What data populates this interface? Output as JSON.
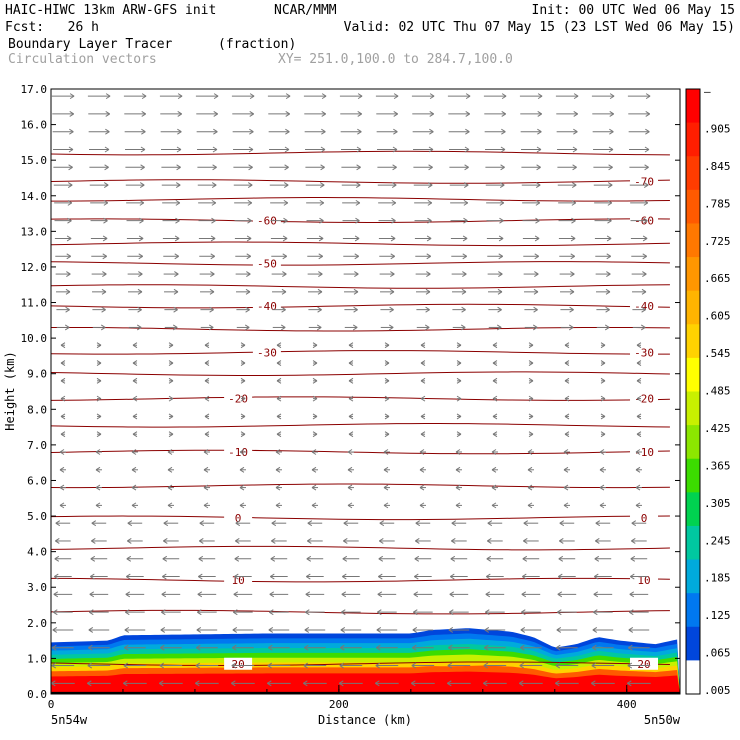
{
  "header": {
    "model": "HAIC-HIWC 13km ARW-GFS init",
    "org": "NCAR/MMM",
    "init": "Init: 00 UTC Wed 06 May 15",
    "fcst": "Fcst:   26 h",
    "valid": "Valid: 02 UTC Thu 07 May 15 (23 LST Wed 06 May 15)",
    "field1": "Boundary Layer Tracer",
    "field1_units": "(fraction)",
    "field2": "Circulation vectors",
    "xy": "XY= 251.0,100.0 to 284.7,100.0"
  },
  "chart_data": {
    "type": "heatmap",
    "xlabel": "Distance (km)",
    "ylabel": "Height (km)",
    "xlim": [
      0,
      437
    ],
    "ylim": [
      0,
      17
    ],
    "x_ticks": [
      "0",
      "200",
      "400"
    ],
    "x_tick_values": [
      0,
      200,
      400
    ],
    "x_end_labels": [
      "5n54w",
      "5n50w"
    ],
    "y_ticks": [
      "0.0",
      "1.0",
      "2.0",
      "3.0",
      "4.0",
      "5.0",
      "6.0",
      "7.0",
      "8.0",
      "9.0",
      "10.0",
      "11.0",
      "12.0",
      "13.0",
      "14.0",
      "15.0",
      "16.0",
      "17.0"
    ],
    "colorbar_labels": [
      "–",
      ".905",
      ".845",
      ".785",
      ".725",
      ".665",
      ".605",
      ".545",
      ".485",
      ".425",
      ".365",
      ".305",
      ".245",
      ".185",
      ".125",
      ".065",
      ".005"
    ],
    "colorbar_colors": [
      "#ff0000",
      "#ff1e00",
      "#ff3c00",
      "#ff5a00",
      "#ff7800",
      "#ff9600",
      "#ffb400",
      "#ffd200",
      "#ffff00",
      "#c8f000",
      "#8ce600",
      "#3cdc00",
      "#00d250",
      "#00c8a0",
      "#00aadc",
      "#0078f0",
      "#0046dc",
      "#ffffff"
    ],
    "isotherm_color": "#8b0000",
    "isotherms": [
      {
        "label": "-70",
        "y": 14.4,
        "label_positions": [
          412
        ]
      },
      {
        "label": "-60",
        "y": 13.3,
        "label_positions": [
          150,
          412
        ]
      },
      {
        "label": "-50",
        "y": 12.1,
        "label_positions": [
          150
        ]
      },
      {
        "label": "-40",
        "y": 10.9,
        "label_positions": [
          150,
          412
        ]
      },
      {
        "label": "-30",
        "y": 9.6,
        "label_positions": [
          150,
          412
        ]
      },
      {
        "label": "-20",
        "y": 8.3,
        "label_positions": [
          130,
          412
        ]
      },
      {
        "label": "-10",
        "y": 6.8,
        "label_positions": [
          130,
          412
        ]
      },
      {
        "label": "0",
        "y": 4.95,
        "label_positions": [
          130,
          412
        ]
      },
      {
        "label": "10",
        "y": 3.2,
        "label_positions": [
          130,
          412
        ]
      },
      {
        "label": "20",
        "y": 0.85,
        "label_positions": [
          130,
          412
        ]
      }
    ],
    "extra_isotherms_y": [
      15.2,
      13.9,
      12.65,
      11.45,
      10.25,
      9.0,
      7.55,
      5.85,
      4.1,
      2.3
    ],
    "tracer_top_km": [
      [
        0,
        1.45
      ],
      [
        40,
        1.5
      ],
      [
        50,
        1.65
      ],
      [
        150,
        1.7
      ],
      [
        250,
        1.7
      ],
      [
        265,
        1.8
      ],
      [
        290,
        1.85
      ],
      [
        320,
        1.75
      ],
      [
        335,
        1.6
      ],
      [
        350,
        1.3
      ],
      [
        365,
        1.4
      ],
      [
        380,
        1.6
      ],
      [
        395,
        1.5
      ],
      [
        420,
        1.4
      ],
      [
        437,
        1.55
      ]
    ],
    "tracer_bands_km": [
      1.3,
      1.15,
      1.0,
      0.9,
      0.75,
      0.6,
      0.45
    ],
    "wind_color": "#777777"
  }
}
